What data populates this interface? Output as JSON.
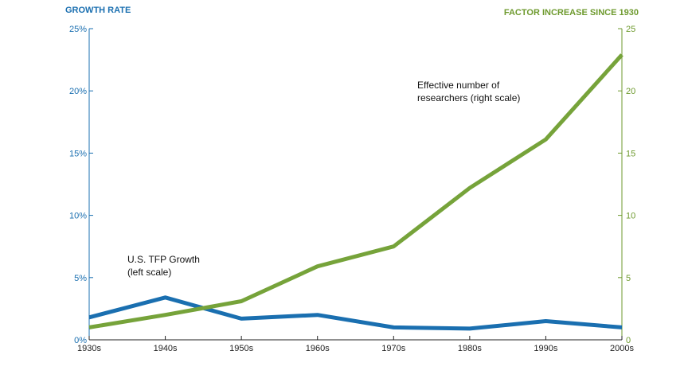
{
  "chart_data": {
    "type": "line",
    "title": "",
    "left_axis_title": "GROWTH RATE",
    "right_axis_title": "FACTOR INCREASE SINCE 1930",
    "categories": [
      "1930s",
      "1940s",
      "1950s",
      "1960s",
      "1970s",
      "1980s",
      "1990s",
      "2000s"
    ],
    "left_axis": {
      "ylim": [
        0,
        25
      ],
      "ticks": [
        0,
        5,
        10,
        15,
        20,
        25
      ],
      "tick_labels": [
        "0%",
        "5%",
        "10%",
        "15%",
        "20%",
        "25%"
      ],
      "color": "#1a6fb0"
    },
    "right_axis": {
      "ylim": [
        0,
        25
      ],
      "ticks": [
        0,
        5,
        10,
        15,
        20,
        25
      ],
      "tick_labels": [
        "0",
        "5",
        "10",
        "15",
        "20",
        "25"
      ],
      "color": "#6e9a2e"
    },
    "series": [
      {
        "name": "U.S. TFP Growth",
        "axis": "left",
        "color": "#1a6fb0",
        "values": [
          1.8,
          3.4,
          1.7,
          2.0,
          1.0,
          0.9,
          1.5,
          1.0
        ]
      },
      {
        "name": "Effective number of researchers",
        "axis": "right",
        "color": "#76a33a",
        "values": [
          1.0,
          2.0,
          3.1,
          5.9,
          7.5,
          12.2,
          16.1,
          22.9
        ]
      }
    ],
    "annotations": {
      "researchers": [
        "Effective number of",
        "researchers (right scale)"
      ],
      "tfp": [
        "U.S. TFP Growth",
        "(left scale)"
      ]
    },
    "grid": false,
    "legend": "none"
  }
}
